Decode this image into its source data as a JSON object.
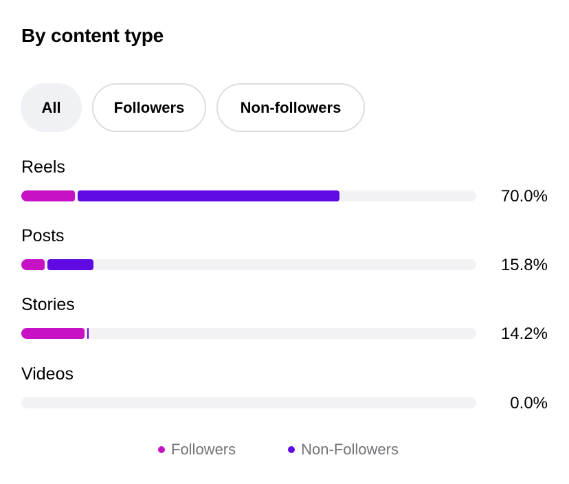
{
  "header": {
    "title": "By content type"
  },
  "filters": {
    "items": [
      {
        "label": "All",
        "active": true
      },
      {
        "label": "Followers",
        "active": false
      },
      {
        "label": "Non-followers",
        "active": false
      }
    ]
  },
  "colors": {
    "followers": "#c711c4",
    "non_followers": "#5f0ae2",
    "track": "#f2f2f4"
  },
  "rows": [
    {
      "label": "Reels",
      "percent": "70.0%",
      "followers_pct": 11.8,
      "non_followers_pct": 58.2
    },
    {
      "label": "Posts",
      "percent": "15.8%",
      "followers_pct": 5.2,
      "non_followers_pct": 10.6
    },
    {
      "label": "Stories",
      "percent": "14.2%",
      "followers_pct": 13.9,
      "non_followers_pct": 0.3
    },
    {
      "label": "Videos",
      "percent": "0.0%",
      "followers_pct": 0.0,
      "non_followers_pct": 0.0
    }
  ],
  "legend": {
    "followers_label": "Followers",
    "non_followers_label": "Non-Followers"
  }
}
